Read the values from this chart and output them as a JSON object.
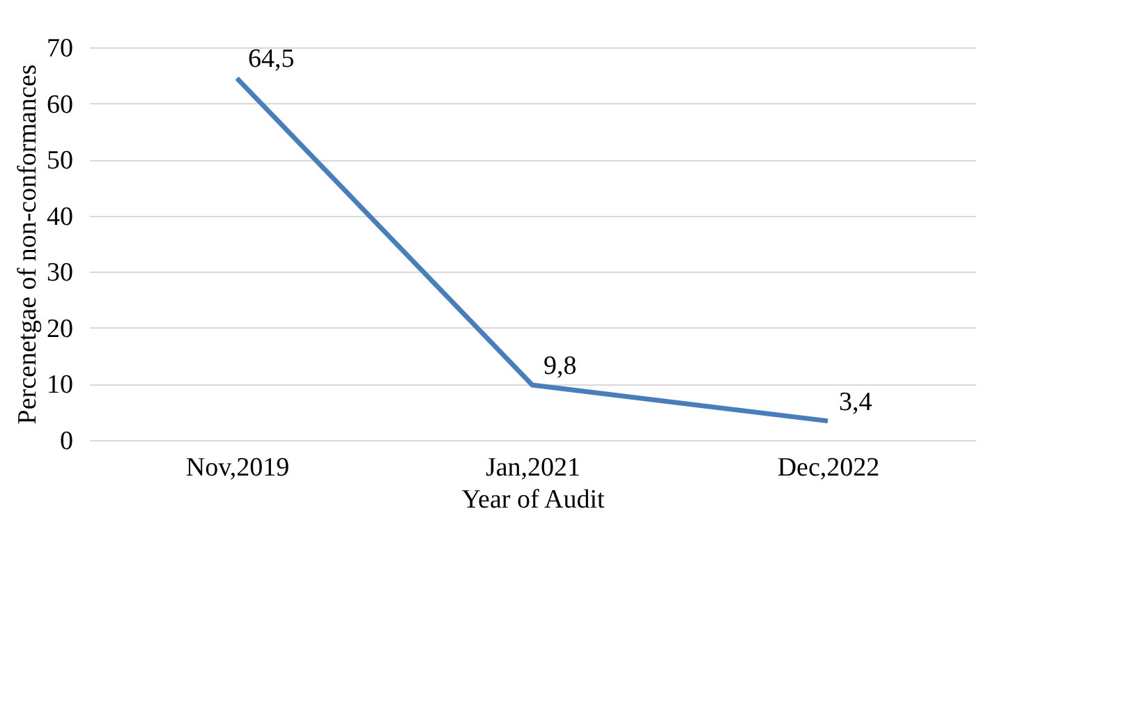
{
  "chart_data": {
    "type": "line",
    "xlabel": "Year of Audit",
    "ylabel": "Percenetgae of non-conformances",
    "categories": [
      "Nov,2019",
      "Jan,2021",
      "Dec,2022"
    ],
    "series": [
      {
        "color": "#4a7ebb",
        "values": [
          64.5,
          9.8,
          3.4
        ],
        "value_labels": [
          "64,5",
          "9,8",
          "3,4"
        ]
      }
    ],
    "ylim": [
      0,
      70
    ],
    "yticks": [
      0,
      10,
      20,
      30,
      40,
      50,
      60,
      70
    ],
    "grid": "y",
    "legend": false,
    "marker": "none",
    "line_style": "solid"
  }
}
